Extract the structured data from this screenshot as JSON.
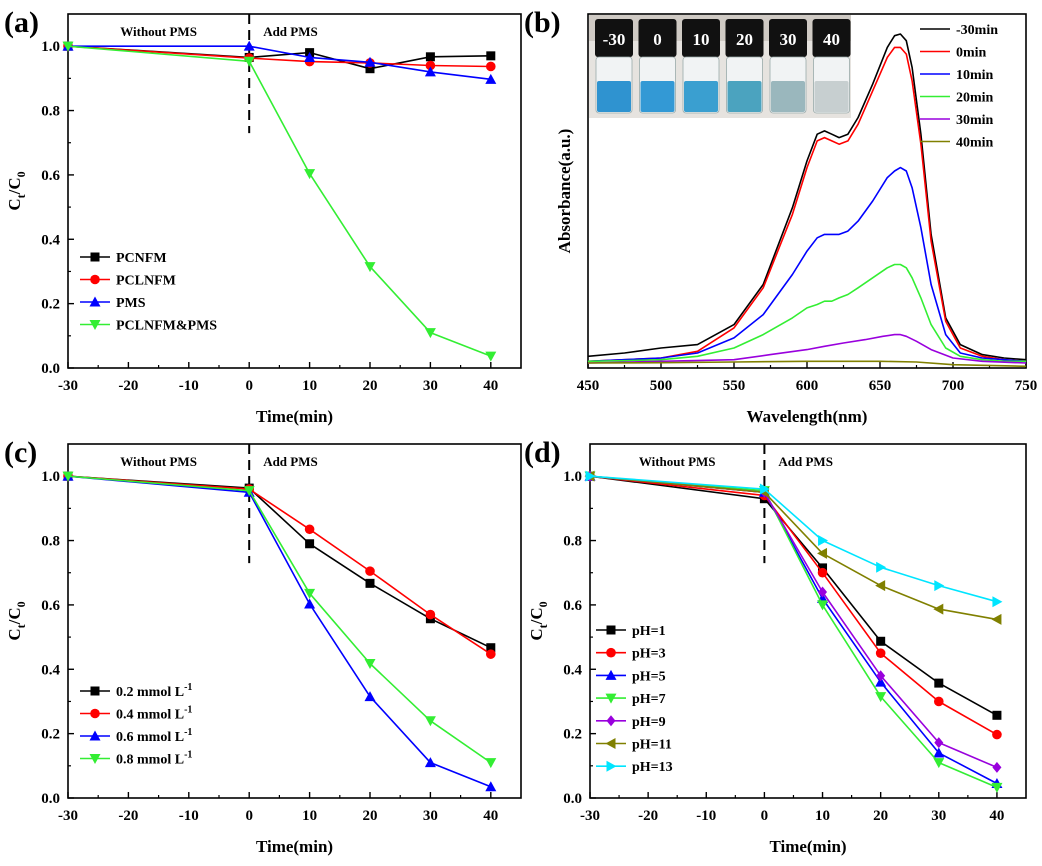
{
  "chart_data": [
    {
      "id": "a",
      "panel_label": "(a)",
      "type": "line",
      "xlabel": "Time(min)",
      "ylabel": "Ct/C0",
      "xlim": [
        -30,
        45
      ],
      "ylim": [
        0.0,
        1.1
      ],
      "xticks": [
        -30,
        -20,
        -10,
        0,
        10,
        20,
        30,
        40
      ],
      "yticks": [
        0.0,
        0.2,
        0.4,
        0.6,
        0.8,
        1.0
      ],
      "annotations": {
        "left": "Without PMS",
        "right": "Add PMS",
        "divider_x": 0
      },
      "legend_position": "bottom-left",
      "series": [
        {
          "name": "PCNFM",
          "color": "#000000",
          "marker": "square",
          "x": [
            -30,
            0,
            10,
            20,
            30,
            40
          ],
          "y": [
            1.0,
            0.965,
            0.98,
            0.93,
            0.967,
            0.97
          ]
        },
        {
          "name": "PCLNFM",
          "color": "#ff0000",
          "marker": "circle",
          "x": [
            -30,
            0,
            10,
            20,
            30,
            40
          ],
          "y": [
            1.0,
            0.963,
            0.952,
            0.948,
            0.94,
            0.937
          ]
        },
        {
          "name": "PMS",
          "color": "#0000ff",
          "marker": "triangle-up",
          "x": [
            -30,
            0,
            10,
            20,
            30,
            40
          ],
          "y": [
            1.0,
            1.0,
            0.965,
            0.95,
            0.92,
            0.897
          ]
        },
        {
          "name": "PCLNFM&PMS",
          "color": "#33ee33",
          "marker": "triangle-down",
          "x": [
            -30,
            0,
            10,
            20,
            30,
            40
          ],
          "y": [
            1.0,
            0.953,
            0.604,
            0.315,
            0.11,
            0.037
          ]
        }
      ]
    },
    {
      "id": "b",
      "panel_label": "(b)",
      "type": "line",
      "xlabel": "Wavelength(nm)",
      "ylabel": "Absorbance(a.u.)",
      "xlim": [
        450,
        750
      ],
      "ylim": [
        0,
        1.06
      ],
      "xticks": [
        450,
        500,
        550,
        600,
        650,
        700,
        750
      ],
      "yticks": [],
      "legend_position": "top-right",
      "vial_labels": [
        "-30",
        "0",
        "10",
        "20",
        "30",
        "40"
      ],
      "series": [
        {
          "name": "-30min",
          "color": "#000000",
          "x": [
            450,
            475,
            500,
            525,
            550,
            570,
            590,
            600,
            607,
            612,
            617,
            622,
            628,
            635,
            645,
            655,
            660,
            664,
            668,
            672,
            678,
            685,
            695,
            705,
            720,
            735,
            750
          ],
          "y": [
            0.035,
            0.045,
            0.06,
            0.07,
            0.13,
            0.25,
            0.48,
            0.62,
            0.7,
            0.71,
            0.7,
            0.69,
            0.7,
            0.75,
            0.85,
            0.96,
            0.995,
            1.0,
            0.98,
            0.9,
            0.7,
            0.4,
            0.15,
            0.07,
            0.04,
            0.03,
            0.025
          ]
        },
        {
          "name": "0min",
          "color": "#ff0000",
          "x": [
            450,
            475,
            500,
            525,
            550,
            570,
            590,
            600,
            607,
            612,
            617,
            622,
            628,
            635,
            645,
            655,
            660,
            664,
            668,
            672,
            678,
            685,
            695,
            705,
            720,
            735,
            750
          ],
          "y": [
            0.02,
            0.025,
            0.03,
            0.05,
            0.12,
            0.24,
            0.46,
            0.6,
            0.68,
            0.69,
            0.68,
            0.67,
            0.68,
            0.73,
            0.83,
            0.93,
            0.96,
            0.96,
            0.94,
            0.86,
            0.67,
            0.38,
            0.14,
            0.06,
            0.035,
            0.025,
            0.02
          ]
        },
        {
          "name": "10min",
          "color": "#0000ff",
          "x": [
            450,
            475,
            500,
            525,
            550,
            570,
            590,
            600,
            607,
            612,
            617,
            622,
            628,
            635,
            645,
            655,
            660,
            664,
            668,
            672,
            678,
            685,
            695,
            705,
            720,
            735,
            750
          ],
          "y": [
            0.02,
            0.025,
            0.03,
            0.045,
            0.09,
            0.16,
            0.28,
            0.35,
            0.39,
            0.4,
            0.4,
            0.4,
            0.41,
            0.44,
            0.5,
            0.57,
            0.59,
            0.6,
            0.59,
            0.54,
            0.42,
            0.25,
            0.1,
            0.045,
            0.03,
            0.025,
            0.02
          ]
        },
        {
          "name": "20min",
          "color": "#33ee33",
          "x": [
            450,
            475,
            500,
            525,
            550,
            570,
            590,
            600,
            607,
            612,
            617,
            622,
            628,
            635,
            645,
            655,
            660,
            664,
            668,
            672,
            678,
            685,
            695,
            705,
            720,
            735,
            750
          ],
          "y": [
            0.02,
            0.022,
            0.025,
            0.035,
            0.06,
            0.1,
            0.15,
            0.18,
            0.19,
            0.2,
            0.2,
            0.21,
            0.22,
            0.24,
            0.27,
            0.3,
            0.31,
            0.31,
            0.3,
            0.27,
            0.21,
            0.13,
            0.06,
            0.035,
            0.025,
            0.02,
            0.02
          ]
        },
        {
          "name": "30min",
          "color": "#9900dd",
          "x": [
            450,
            500,
            550,
            575,
            600,
            612,
            625,
            640,
            652,
            660,
            664,
            668,
            675,
            685,
            700,
            720,
            750
          ],
          "y": [
            0.015,
            0.02,
            0.025,
            0.04,
            0.055,
            0.065,
            0.075,
            0.085,
            0.095,
            0.1,
            0.1,
            0.095,
            0.08,
            0.055,
            0.03,
            0.02,
            0.015
          ]
        },
        {
          "name": "40min",
          "color": "#808000",
          "x": [
            450,
            500,
            550,
            600,
            650,
            675,
            700,
            750
          ],
          "y": [
            0.015,
            0.016,
            0.018,
            0.02,
            0.02,
            0.018,
            0.01,
            0.005
          ]
        }
      ]
    },
    {
      "id": "c",
      "panel_label": "(c)",
      "type": "line",
      "xlabel": "Time(min)",
      "ylabel": "Ct/C0",
      "xlim": [
        -30,
        45
      ],
      "ylim": [
        0.0,
        1.1
      ],
      "xticks": [
        -30,
        -20,
        -10,
        0,
        10,
        20,
        30,
        40
      ],
      "yticks": [
        0.0,
        0.2,
        0.4,
        0.6,
        0.8,
        1.0
      ],
      "annotations": {
        "left": "Without PMS",
        "right": "Add PMS",
        "divider_x": 0
      },
      "legend_position": "bottom-left",
      "series": [
        {
          "name": "0.2 mmol L",
          "sup": "-1",
          "color": "#000000",
          "marker": "square",
          "x": [
            -30,
            0,
            10,
            20,
            30,
            40
          ],
          "y": [
            1.0,
            0.963,
            0.79,
            0.667,
            0.557,
            0.467
          ]
        },
        {
          "name": "0.4 mmol L",
          "sup": "-1",
          "color": "#ff0000",
          "marker": "circle",
          "x": [
            -30,
            0,
            10,
            20,
            30,
            40
          ],
          "y": [
            1.0,
            0.96,
            0.835,
            0.705,
            0.57,
            0.447
          ]
        },
        {
          "name": "0.6 mmol L",
          "sup": "-1",
          "color": "#0000ff",
          "marker": "triangle-up",
          "x": [
            -30,
            0,
            10,
            20,
            30,
            40
          ],
          "y": [
            1.0,
            0.95,
            0.603,
            0.315,
            0.11,
            0.035
          ]
        },
        {
          "name": "0.8 mmol L",
          "sup": "-1",
          "color": "#33ee33",
          "marker": "triangle-down",
          "x": [
            -30,
            0,
            10,
            20,
            30,
            40
          ],
          "y": [
            1.0,
            0.955,
            0.636,
            0.418,
            0.24,
            0.11
          ]
        }
      ]
    },
    {
      "id": "d",
      "panel_label": "(d)",
      "type": "line",
      "xlabel": "Time(min)",
      "ylabel": "Ct/C0",
      "xlim": [
        -30,
        45
      ],
      "ylim": [
        0.0,
        1.1
      ],
      "xticks": [
        -30,
        -20,
        -10,
        0,
        10,
        20,
        30,
        40
      ],
      "yticks": [
        0.0,
        0.2,
        0.4,
        0.6,
        0.8,
        1.0
      ],
      "annotations": {
        "left": "Without PMS",
        "right": "Add PMS",
        "divider_x": 0
      },
      "legend_position": "center-left",
      "series": [
        {
          "name": "pH=1",
          "color": "#000000",
          "marker": "square",
          "x": [
            -30,
            0,
            10,
            20,
            30,
            40
          ],
          "y": [
            1.0,
            0.93,
            0.715,
            0.487,
            0.357,
            0.257
          ]
        },
        {
          "name": "pH=3",
          "color": "#ff0000",
          "marker": "circle",
          "x": [
            -30,
            0,
            10,
            20,
            30,
            40
          ],
          "y": [
            1.0,
            0.94,
            0.7,
            0.45,
            0.3,
            0.197
          ]
        },
        {
          "name": "pH=5",
          "color": "#0000ff",
          "marker": "triangle-up",
          "x": [
            -30,
            0,
            10,
            20,
            30,
            40
          ],
          "y": [
            1.0,
            0.95,
            0.62,
            0.36,
            0.14,
            0.045
          ]
        },
        {
          "name": "pH=7",
          "color": "#33ee33",
          "marker": "triangle-down",
          "x": [
            -30,
            0,
            10,
            20,
            30,
            40
          ],
          "y": [
            1.0,
            0.955,
            0.6,
            0.315,
            0.11,
            0.033
          ]
        },
        {
          "name": "pH=9",
          "color": "#9900dd",
          "marker": "diamond",
          "x": [
            -30,
            0,
            10,
            20,
            30,
            40
          ],
          "y": [
            1.0,
            0.95,
            0.64,
            0.38,
            0.172,
            0.095
          ]
        },
        {
          "name": "pH=11",
          "color": "#808000",
          "marker": "triangle-left",
          "x": [
            -30,
            0,
            10,
            20,
            30,
            40
          ],
          "y": [
            1.0,
            0.95,
            0.76,
            0.66,
            0.587,
            0.555
          ]
        },
        {
          "name": "pH=13",
          "color": "#00e5ff",
          "marker": "triangle-right",
          "x": [
            -30,
            0,
            10,
            20,
            30,
            40
          ],
          "y": [
            1.0,
            0.96,
            0.8,
            0.717,
            0.66,
            0.61
          ]
        }
      ]
    }
  ]
}
